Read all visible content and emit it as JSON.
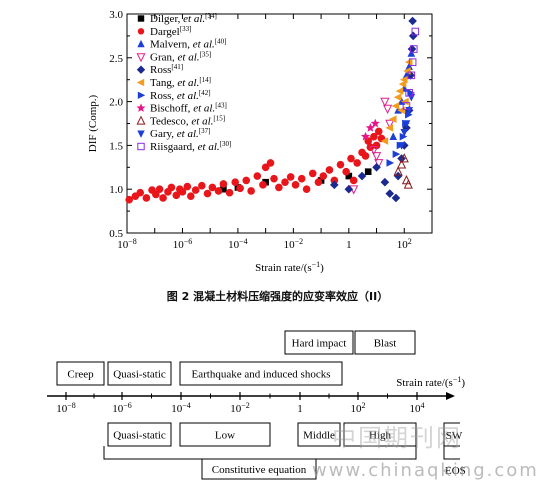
{
  "caption": "图 2  混凝土材料压缩强度的应变率效应（II）",
  "watermark": {
    "cn": "中国期刊网",
    "url": "www.chinaqking.com"
  },
  "chart_data": {
    "type": "scatter",
    "xlabel": "Strain rate/(s",
    "xlabel_sup": "−1",
    "xlabel_end": ")",
    "ylabel": "DIF (Comp.)",
    "xscale": "log",
    "xlim": [
      1e-08,
      1000
    ],
    "ylim": [
      0.5,
      3.0
    ],
    "x_tick_exponents": [
      -8,
      -6,
      -4,
      -2,
      0,
      2
    ],
    "x_tick_labels": [
      "10",
      "10",
      "10",
      "10",
      "1",
      "10"
    ],
    "x_tick_sups": [
      "−8",
      "−6",
      "−4",
      "−2",
      "",
      "2"
    ],
    "y_ticks": [
      0.5,
      1.0,
      1.5,
      2.0,
      2.5,
      3.0
    ],
    "y_tick_labels": [
      "0.5",
      "1.0",
      "1.5",
      "2.0",
      "2.5",
      "3.0"
    ],
    "legend_position": "top-left",
    "series": [
      {
        "name": "Dilger,",
        "italic": "et al.",
        "ref": "[34]",
        "marker": "square",
        "color": "#000000",
        "points": [
          [
            3e-05,
            1.0
          ],
          [
            0.0001,
            1.02
          ],
          [
            0.001,
            1.08
          ],
          [
            0.1,
            1.1
          ],
          [
            1,
            1.15
          ],
          [
            5,
            1.2
          ]
        ]
      },
      {
        "name": "Dargel",
        "italic": "",
        "ref": "[33]",
        "marker": "circle",
        "color": "#e8161b",
        "points": [
          [
            1.2e-08,
            0.88
          ],
          [
            2e-08,
            0.92
          ],
          [
            3e-08,
            0.96
          ],
          [
            5e-08,
            0.9
          ],
          [
            8e-08,
            0.99
          ],
          [
            1.1e-07,
            0.94
          ],
          [
            1.5e-07,
            1.0
          ],
          [
            2e-07,
            0.9
          ],
          [
            3e-07,
            0.97
          ],
          [
            4e-07,
            1.02
          ],
          [
            6e-07,
            0.93
          ],
          [
            8e-07,
            1.0
          ],
          [
            1e-06,
            0.97
          ],
          [
            1.5e-06,
            1.03
          ],
          [
            2e-06,
            0.92
          ],
          [
            3e-06,
            0.99
          ],
          [
            5e-06,
            1.04
          ],
          [
            8e-06,
            0.95
          ],
          [
            1.2e-05,
            1.02
          ],
          [
            2e-05,
            0.98
          ],
          [
            3e-05,
            1.06
          ],
          [
            5e-05,
            0.96
          ],
          [
            8e-05,
            1.08
          ],
          [
            0.00012,
            1.01
          ],
          [
            0.0002,
            1.1
          ],
          [
            0.0003,
            0.98
          ],
          [
            0.0005,
            1.15
          ],
          [
            0.0008,
            1.05
          ],
          [
            0.001,
            1.25
          ],
          [
            0.0015,
            1.3
          ],
          [
            0.002,
            1.12
          ],
          [
            0.003,
            1.02
          ],
          [
            0.005,
            1.08
          ],
          [
            0.008,
            1.14
          ],
          [
            0.012,
            1.05
          ],
          [
            0.02,
            1.12
          ],
          [
            0.03,
            1.0
          ],
          [
            0.05,
            1.18
          ],
          [
            0.08,
            1.08
          ],
          [
            0.12,
            1.15
          ],
          [
            0.2,
            1.22
          ],
          [
            0.3,
            1.1
          ],
          [
            0.5,
            1.28
          ],
          [
            0.8,
            1.2
          ],
          [
            1.2,
            1.35
          ],
          [
            1.5,
            1.1
          ],
          [
            2,
            1.3
          ],
          [
            3,
            1.42
          ],
          [
            4,
            1.38
          ],
          [
            5,
            1.55
          ],
          [
            6,
            1.48
          ],
          [
            8,
            1.6
          ],
          [
            10,
            1.5
          ],
          [
            12,
            1.66
          ],
          [
            15,
            1.58
          ]
        ]
      },
      {
        "name": "Malvern,",
        "italic": "et al.",
        "ref": "[40]",
        "marker": "triangle-up",
        "color": "#1c3fd8",
        "points": [
          [
            40,
            1.6
          ],
          [
            60,
            1.9
          ],
          [
            80,
            2.0
          ],
          [
            100,
            2.15
          ],
          [
            120,
            2.3
          ],
          [
            150,
            2.4
          ],
          [
            180,
            2.55
          ]
        ]
      },
      {
        "name": "Gran,",
        "italic": "et al.",
        "ref": "[35]",
        "marker": "triangle-down-open",
        "color": "#e0218a",
        "points": [
          [
            20,
            2.0
          ],
          [
            25,
            1.92
          ],
          [
            30,
            1.75
          ],
          [
            8,
            1.45
          ],
          [
            10,
            1.38
          ],
          [
            12,
            1.3
          ],
          [
            1.5,
            1.0
          ]
        ]
      },
      {
        "name": "Ross",
        "italic": "",
        "ref": "[41]",
        "marker": "diamond",
        "color": "#1b2a8f",
        "points": [
          [
            0.3,
            1.05
          ],
          [
            1,
            1.0
          ],
          [
            3,
            1.15
          ],
          [
            10,
            1.25
          ],
          [
            20,
            1.08
          ],
          [
            30,
            0.95
          ],
          [
            50,
            0.9
          ],
          [
            60,
            1.15
          ],
          [
            80,
            1.35
          ],
          [
            100,
            1.5
          ],
          [
            120,
            1.7
          ],
          [
            150,
            1.9
          ],
          [
            170,
            2.3
          ],
          [
            190,
            2.6
          ],
          [
            200,
            2.92
          ],
          [
            210,
            2.75
          ]
        ]
      },
      {
        "name": "Tang,",
        "italic": "et al.",
        "ref": "[14]",
        "marker": "triangle-left",
        "color": "#f39c1f",
        "points": [
          [
            20,
            1.55
          ],
          [
            30,
            1.7
          ],
          [
            40,
            1.8
          ],
          [
            50,
            1.95
          ],
          [
            60,
            2.05
          ],
          [
            70,
            2.12
          ],
          [
            80,
            1.9
          ],
          [
            90,
            2.2
          ],
          [
            100,
            2.25
          ],
          [
            110,
            2.0
          ],
          [
            130,
            2.35
          ],
          [
            150,
            2.45
          ]
        ]
      },
      {
        "name": "Ross,",
        "italic": "et al.",
        "ref": "[42]",
        "marker": "triangle-right",
        "color": "#1c3fd8",
        "points": [
          [
            30,
            1.3
          ],
          [
            50,
            1.4
          ],
          [
            70,
            1.5
          ],
          [
            90,
            1.6
          ],
          [
            110,
            1.75
          ],
          [
            140,
            1.85
          ],
          [
            170,
            2.1
          ]
        ]
      },
      {
        "name": "Bischoff,",
        "italic": "et al.",
        "ref": "[43]",
        "marker": "star",
        "color": "#e8168a",
        "points": [
          [
            4,
            1.6
          ],
          [
            6,
            1.7
          ],
          [
            9,
            1.75
          ]
        ]
      },
      {
        "name": "Tedesco,",
        "italic": "et al.",
        "ref": "[15]",
        "marker": "triangle-up-open",
        "color": "#8b1a1a",
        "points": [
          [
            60,
            1.2
          ],
          [
            80,
            1.28
          ],
          [
            100,
            1.35
          ],
          [
            120,
            1.1
          ],
          [
            140,
            1.05
          ]
        ]
      },
      {
        "name": "Gary,",
        "italic": "et al.",
        "ref": "[37]",
        "marker": "triangle-down",
        "color": "#1c3fd8",
        "points": [
          [
            80,
            1.5
          ],
          [
            100,
            1.65
          ],
          [
            120,
            1.75
          ],
          [
            150,
            1.9
          ],
          [
            180,
            2.05
          ]
        ]
      },
      {
        "name": "Riisgaard,",
        "italic": "et al.",
        "ref": "[30]",
        "marker": "square-open",
        "color": "#8a2be2",
        "points": [
          [
            120,
            1.95
          ],
          [
            150,
            2.1
          ],
          [
            180,
            2.3
          ],
          [
            200,
            2.45
          ],
          [
            220,
            2.6
          ],
          [
            250,
            2.8
          ]
        ]
      }
    ]
  },
  "scale_diagram": {
    "axis_label": "Strain rate/(s",
    "axis_label_sup": "−1",
    "axis_label_end": ")",
    "ticks": [
      {
        "base": "10",
        "sup": "−8"
      },
      {
        "base": "10",
        "sup": "−6"
      },
      {
        "base": "10",
        "sup": "−4"
      },
      {
        "base": "10",
        "sup": "−2"
      },
      {
        "base": "1",
        "sup": ""
      },
      {
        "base": "10",
        "sup": "2"
      },
      {
        "base": "10",
        "sup": "4"
      }
    ],
    "upper_boxes": {
      "creep": "Creep",
      "quasi_static": "Quasi-static",
      "earthquake": "Earthquake and induced shocks",
      "hard_impact": "Hard impact",
      "blast": "Blast"
    },
    "lower_boxes": {
      "quasi_static": "Quasi-static",
      "low": "Low",
      "middle": "Middle",
      "high": "High",
      "sw": "SW"
    },
    "constitutive": "Constitutive equation",
    "eos": "EOS"
  }
}
